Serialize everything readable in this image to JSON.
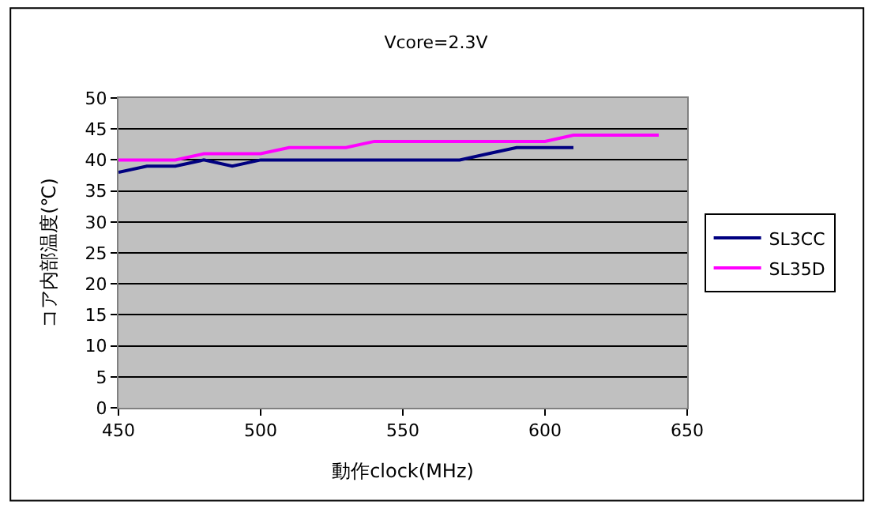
{
  "chart_data": {
    "type": "line",
    "title": "Vcore=2.3V",
    "xlabel": "動作clock(MHz)",
    "ylabel": "コア内部温度(℃)",
    "series": [
      {
        "name": "SL3CC",
        "color": "#000080",
        "x": [
          450,
          460,
          470,
          480,
          490,
          500,
          510,
          520,
          530,
          540,
          550,
          560,
          570,
          580,
          590,
          600,
          610
        ],
        "values": [
          38,
          39,
          39,
          40,
          39,
          40,
          40,
          40,
          40,
          40,
          40,
          40,
          40,
          41,
          42,
          42,
          42
        ]
      },
      {
        "name": "SL35D",
        "color": "#ff00ff",
        "x": [
          450,
          460,
          470,
          480,
          490,
          500,
          510,
          520,
          530,
          540,
          550,
          560,
          570,
          580,
          590,
          600,
          610,
          620,
          630,
          640
        ],
        "values": [
          40,
          40,
          40,
          41,
          41,
          41,
          42,
          42,
          42,
          43,
          43,
          43,
          43,
          43,
          43,
          43,
          44,
          44,
          44,
          44
        ]
      }
    ],
    "xlim": [
      450,
      650
    ],
    "xticks": [
      450,
      500,
      550,
      600,
      650
    ],
    "ylim": [
      0,
      50
    ],
    "yticks": [
      0,
      5,
      10,
      15,
      20,
      25,
      30,
      35,
      40,
      45,
      50
    ],
    "grid": "y",
    "legend": "right",
    "marker": "none",
    "line_style": "solid"
  }
}
